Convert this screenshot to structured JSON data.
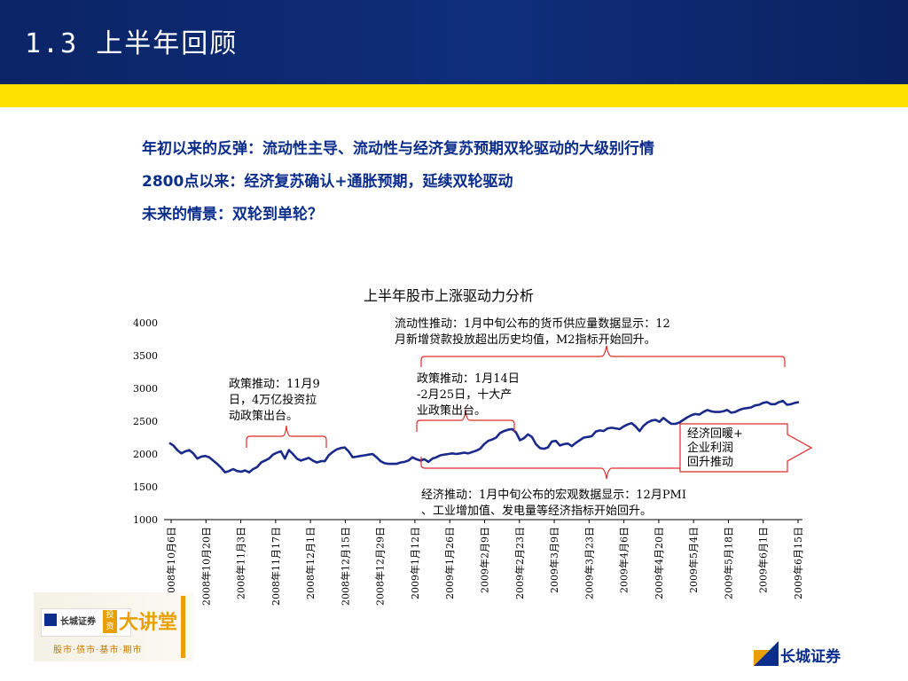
{
  "header": {
    "title": "1.3   上半年回顾"
  },
  "colors": {
    "header_bg": "#0b2466",
    "yellow_band": "#ffe100",
    "text_blue": "#0b2d8c",
    "line": "#1a2a8c",
    "bracket": "#e02a2a"
  },
  "intro": [
    "年初以来的反弹：流动性主导、流动性与经济复苏预期双轮驱动的大级别行情",
    "2800点以来：经济复苏确认+通胀预期，延续双轮驱动",
    "未来的情景：双轮到单轮？"
  ],
  "chart_data": {
    "type": "line",
    "title": "上半年股市上涨驱动力分析",
    "xlabel": "",
    "ylabel": "",
    "ylim": [
      1000,
      4000
    ],
    "yticks": [
      1000,
      1500,
      2000,
      2500,
      3000,
      3500,
      4000
    ],
    "xtick_labels": [
      "2008年10月6日",
      "2008年10月20日",
      "2008年11月3日",
      "2008年11月17日",
      "2008年12月1日",
      "2008年12月15日",
      "2008年12月29日",
      "2009年1月12日",
      "2009年1月26日",
      "2009年2月9日",
      "2009年2月23日",
      "2009年3月9日",
      "2009年3月23日",
      "2009年4月6日",
      "2009年4月20日",
      "2009年5月4日",
      "2009年5月18日",
      "2009年6月1日",
      "2009年6月15日"
    ],
    "series": [
      {
        "values": [
          2170,
          2130,
          2060,
          2010,
          2040,
          2060,
          2010,
          1930,
          1960,
          1970,
          1950,
          1900,
          1850,
          1790,
          1720,
          1740,
          1770,
          1740,
          1730,
          1750,
          1720,
          1770,
          1800,
          1870,
          1900,
          1930,
          1990,
          2020,
          2040,
          1930,
          2060,
          2000,
          1930,
          1900,
          1920,
          1940,
          1900,
          1870,
          1890,
          1890,
          1980,
          2030,
          2070,
          2090,
          2100,
          2040,
          1950,
          1960,
          1970,
          1980,
          1990,
          2000,
          1950,
          1890,
          1860,
          1850,
          1850,
          1850,
          1870,
          1880,
          1900,
          1950,
          1920,
          1900,
          1920,
          1880,
          1930,
          1950,
          1980,
          1990,
          2000,
          2010,
          2000,
          2010,
          2020,
          2010,
          2030,
          2050,
          2080,
          2150,
          2200,
          2220,
          2250,
          2320,
          2350,
          2370,
          2380,
          2330,
          2210,
          2240,
          2300,
          2260,
          2150,
          2090,
          2080,
          2100,
          2190,
          2200,
          2130,
          2150,
          2160,
          2120,
          2170,
          2210,
          2250,
          2260,
          2270,
          2340,
          2360,
          2350,
          2390,
          2400,
          2390,
          2380,
          2420,
          2450,
          2470,
          2420,
          2350,
          2430,
          2480,
          2510,
          2520,
          2490,
          2550,
          2500,
          2460,
          2460,
          2480,
          2520,
          2560,
          2590,
          2610,
          2600,
          2640,
          2670,
          2650,
          2640,
          2640,
          2650,
          2670,
          2630,
          2640,
          2670,
          2690,
          2700,
          2710,
          2740,
          2750,
          2780,
          2790,
          2760,
          2760,
          2790,
          2810,
          2750,
          2760,
          2780,
          2790
        ]
      }
    ]
  },
  "annotations": {
    "policy_1": "政策推动：11月9\n日，4万亿投资拉\n动政策出台。",
    "policy_2": "政策推动：1月14日\n-2月25日，十大产\n业政策出台。",
    "liquidity": "流动性推动：1月中旬公布的货币供应量数据显示：12\n月新增贷款投放超出历史均值，M2指标开始回升。",
    "economy": "经济推动：1月中旬公布的宏观数据显示：12月PMI\n、工业增加值、发电量等经济指标开始回升。",
    "arrow_text": "经济回暖+\n企业利润\n回升推动"
  },
  "logos": {
    "left_small": "长城证券",
    "left_tag": "投资",
    "left_big": "大讲堂",
    "left_sub": "股市·债市·基市·期市",
    "right": "长城证券"
  }
}
